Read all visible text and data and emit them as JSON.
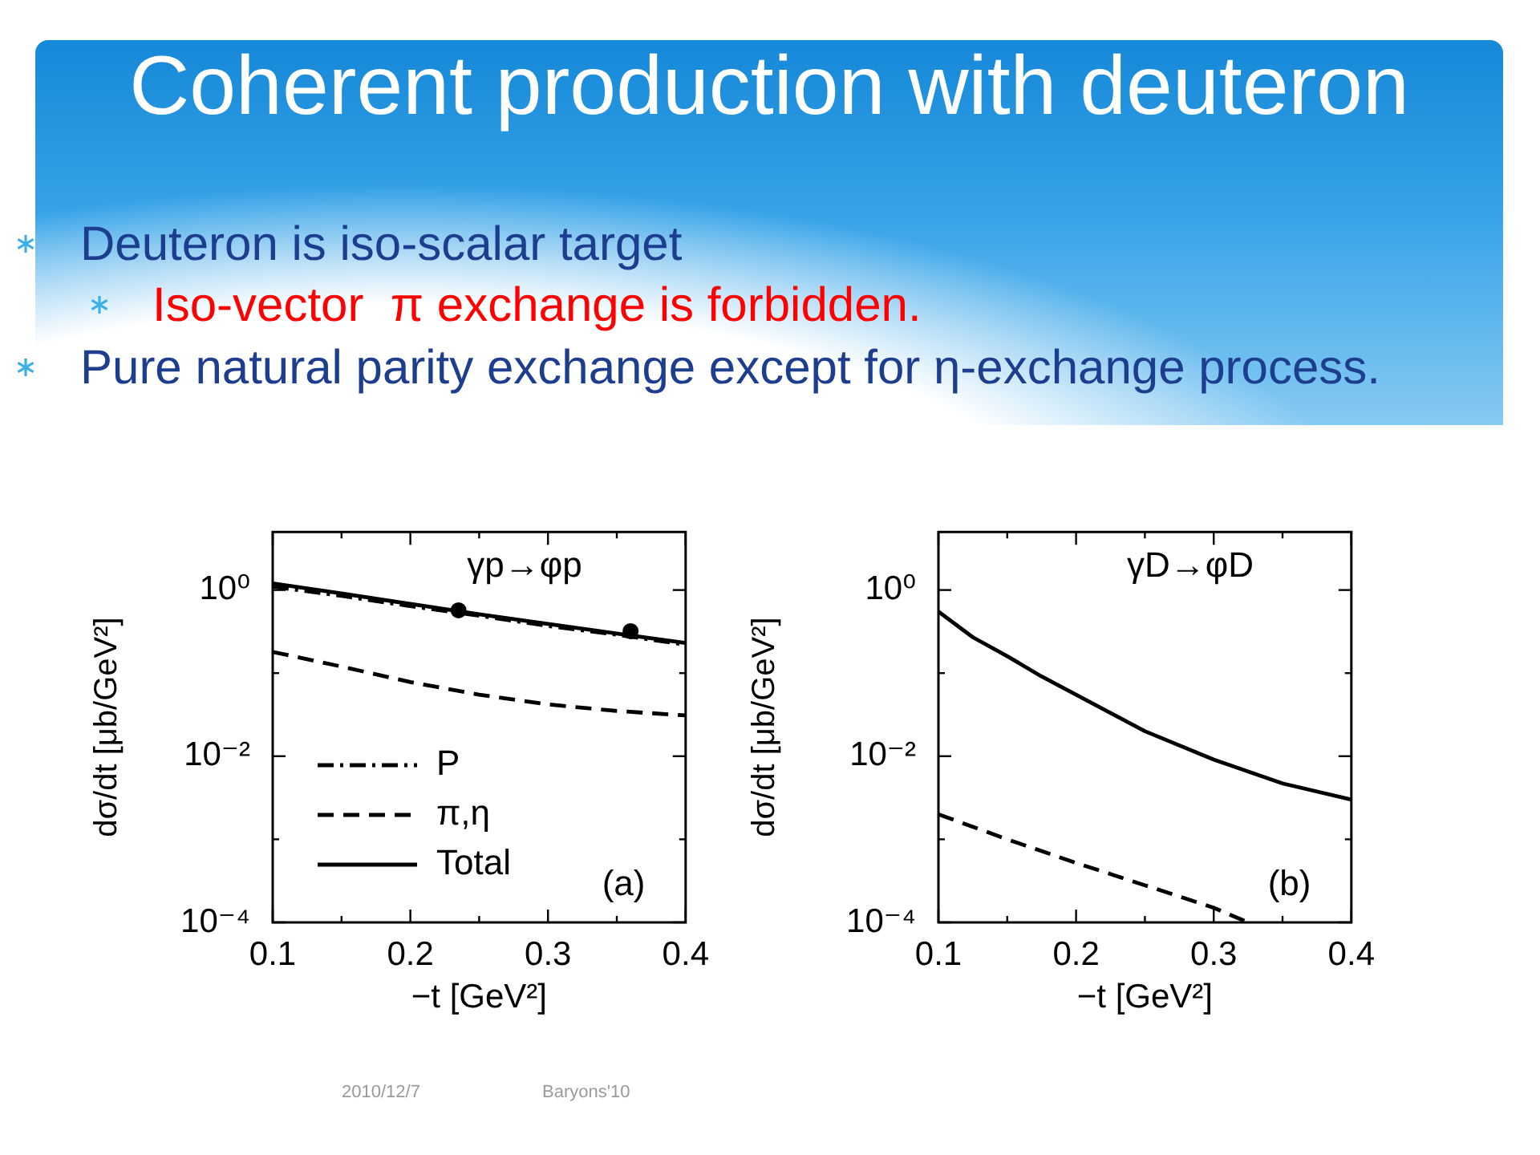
{
  "chart_data": [
    {
      "type": "other",
      "title": "Coherent production with deuteron",
      "annotations": [
        "Deuteron is iso-scalar target",
        "Iso-vector  π exchange is forbidden.",
        "Pure natural parity exchange except for η-exchange process.",
        "2010/12/7",
        "Baryons'10"
      ]
    },
    {
      "type": "line",
      "xlabel": "−t [GeV²]",
      "ylabel": "dσ/dt [μb/GeV²]",
      "annotations": [
        "γp→φp",
        "(a)"
      ],
      "xlim": [
        0.1,
        0.4
      ],
      "xticks": [
        0.1,
        {
          "value": 0.15,
          "label": null
        },
        0.2,
        {
          "value": 0.25,
          "label": null
        },
        0.3,
        {
          "value": 0.35,
          "label": null
        },
        0.4
      ],
      "ylim": [
        0.0001,
        5
      ],
      "yticks": [
        {
          "value": 0.0001,
          "label": "10⁻⁴"
        },
        {
          "value": 0.001,
          "label": null
        },
        {
          "value": 0.01,
          "label": "10⁻²"
        },
        {
          "value": 0.1,
          "label": null
        },
        {
          "value": 1,
          "label": "10⁰"
        }
      ],
      "log": true,
      "grid": false,
      "legend": "bottom left",
      "series": [
        {
          "name": "P",
          "color": "#000000",
          "line_style": "dashdot",
          "x": [
            0.1,
            0.15,
            0.2,
            0.25,
            0.3,
            0.35,
            0.4
          ],
          "values": [
            1.1,
            0.85,
            0.64,
            0.49,
            0.37,
            0.29,
            0.22
          ]
        },
        {
          "name": "π,η",
          "color": "#000000",
          "line_style": "dashed",
          "x": [
            0.1,
            0.15,
            0.2,
            0.25,
            0.3,
            0.35,
            0.4
          ],
          "values": [
            0.18,
            0.12,
            0.078,
            0.055,
            0.042,
            0.035,
            0.031
          ]
        },
        {
          "name": "Total",
          "color": "#000000",
          "line_style": "solid",
          "x": [
            0.1,
            0.15,
            0.2,
            0.25,
            0.3,
            0.35,
            0.4
          ],
          "values": [
            1.2,
            0.91,
            0.68,
            0.51,
            0.39,
            0.3,
            0.23
          ]
        },
        {
          "type": "scatter",
          "color": "#000000",
          "marker": "circle",
          "x": [
            0.235,
            0.36
          ],
          "values": [
            0.57,
            0.32
          ]
        }
      ]
    },
    {
      "type": "line",
      "xlabel": "−t [GeV²]",
      "ylabel": "dσ/dt [μb/GeV²]",
      "annotations": [
        "γD→φD",
        "(b)"
      ],
      "xlim": [
        0.1,
        0.4
      ],
      "xticks": [
        0.1,
        {
          "value": 0.15,
          "label": null
        },
        0.2,
        {
          "value": 0.25,
          "label": null
        },
        0.3,
        {
          "value": 0.35,
          "label": null
        },
        0.4
      ],
      "ylim": [
        0.0001,
        5
      ],
      "yticks": [
        {
          "value": 0.0001,
          "label": "10⁻⁴"
        },
        {
          "value": 0.001,
          "label": null
        },
        {
          "value": 0.01,
          "label": "10⁻²"
        },
        {
          "value": 0.1,
          "label": null
        },
        {
          "value": 1,
          "label": "10⁰"
        }
      ],
      "log": true,
      "grid": false,
      "series": [
        {
          "color": "#000000",
          "line_style": "solid",
          "x": [
            0.1,
            0.125,
            0.15,
            0.175,
            0.2,
            0.25,
            0.3,
            0.35,
            0.4
          ],
          "values": [
            0.55,
            0.27,
            0.16,
            0.091,
            0.055,
            0.02,
            0.0091,
            0.0047,
            0.003
          ]
        },
        {
          "color": "#000000",
          "line_style": "dashed",
          "x": [
            0.1,
            0.15,
            0.2,
            0.25,
            0.3,
            0.325
          ],
          "values": [
            0.002,
            0.001,
            0.00052,
            0.00028,
            0.00015,
            0.0001
          ]
        }
      ]
    }
  ]
}
